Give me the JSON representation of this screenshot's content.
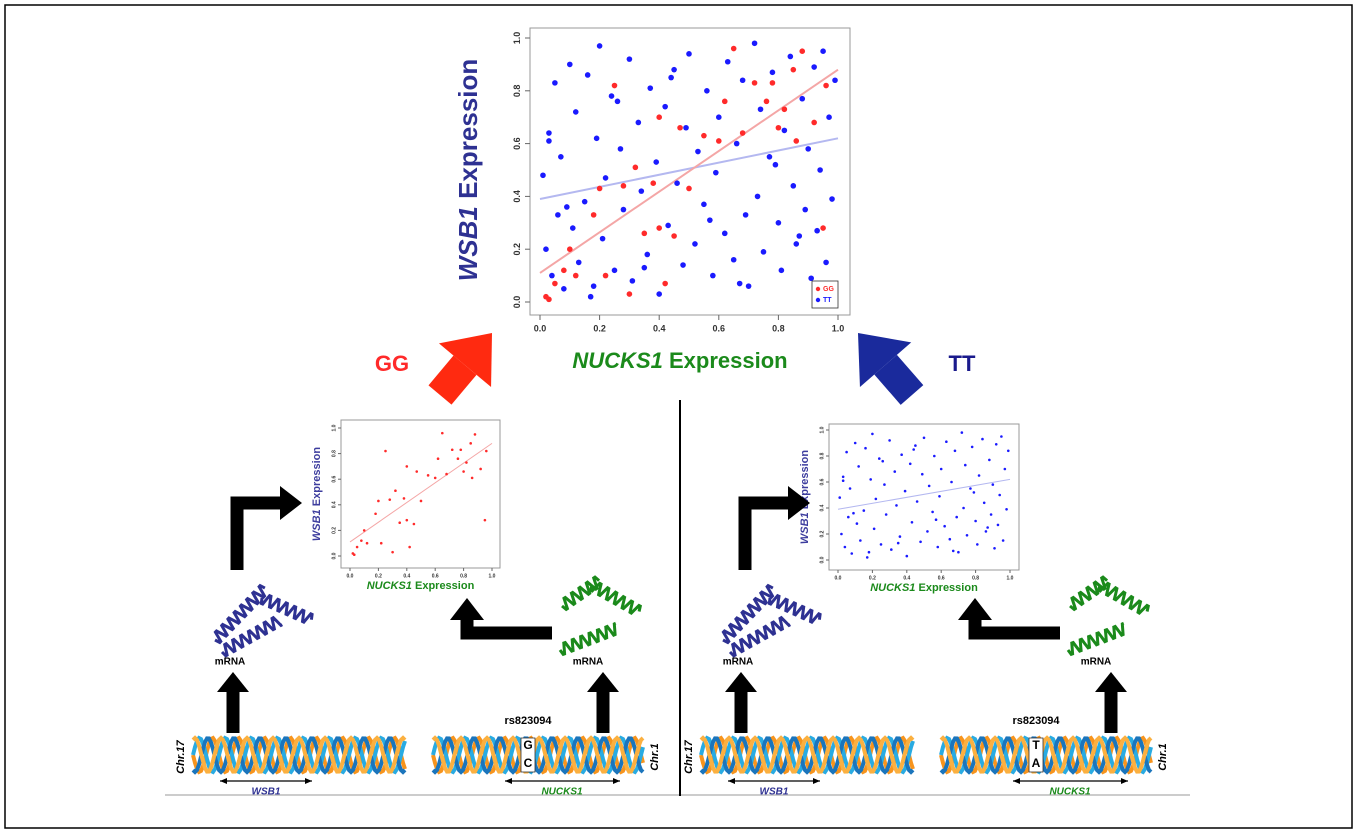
{
  "chart_data": {
    "type": "scatter",
    "x_label": {
      "gene": "NUCKS1",
      "rest": "Expression"
    },
    "y_label": {
      "gene": "WSB1",
      "rest": "Expression"
    },
    "xlim": [
      0,
      1
    ],
    "ylim": [
      0,
      1
    ],
    "xticks": [
      {
        "value": 0,
        "label": "0.0"
      },
      0.2,
      0.4,
      0.6,
      0.8,
      {
        "value": 1,
        "label": "1.0"
      }
    ],
    "yticks": [
      {
        "value": 0,
        "label": "0.0"
      },
      0.2,
      0.4,
      0.6,
      0.8,
      {
        "value": 1,
        "label": "1.0"
      }
    ],
    "legend": "lower right",
    "series": [
      {
        "name": "GG",
        "color": "#ff2a2a",
        "trend_color": "#f4a6a6",
        "x": [
          0.02,
          0.03,
          0.05,
          0.08,
          0.1,
          0.12,
          0.18,
          0.2,
          0.22,
          0.25,
          0.28,
          0.3,
          0.32,
          0.35,
          0.38,
          0.4,
          0.4,
          0.42,
          0.45,
          0.47,
          0.5,
          0.55,
          0.6,
          0.62,
          0.65,
          0.68,
          0.72,
          0.76,
          0.78,
          0.8,
          0.82,
          0.85,
          0.86,
          0.88,
          0.92,
          0.95,
          0.96
        ],
        "y": [
          0.02,
          0.01,
          0.07,
          0.12,
          0.2,
          0.1,
          0.33,
          0.43,
          0.1,
          0.82,
          0.44,
          0.03,
          0.51,
          0.26,
          0.45,
          0.28,
          0.7,
          0.07,
          0.25,
          0.66,
          0.43,
          0.63,
          0.61,
          0.76,
          0.96,
          0.64,
          0.83,
          0.76,
          0.83,
          0.66,
          0.73,
          0.88,
          0.61,
          0.95,
          0.68,
          0.28,
          0.82
        ],
        "trend": [
          0.11,
          0.88
        ]
      },
      {
        "name": "TT",
        "color": "#1a1aff",
        "trend_color": "#b4b8f0",
        "x": [
          0.01,
          0.02,
          0.03,
          0.04,
          0.05,
          0.06,
          0.07,
          0.08,
          0.1,
          0.11,
          0.12,
          0.13,
          0.15,
          0.16,
          0.18,
          0.19,
          0.2,
          0.21,
          0.22,
          0.24,
          0.25,
          0.27,
          0.28,
          0.3,
          0.31,
          0.33,
          0.34,
          0.36,
          0.37,
          0.39,
          0.4,
          0.42,
          0.43,
          0.45,
          0.46,
          0.48,
          0.49,
          0.5,
          0.52,
          0.53,
          0.55,
          0.56,
          0.58,
          0.59,
          0.6,
          0.62,
          0.63,
          0.65,
          0.66,
          0.68,
          0.69,
          0.7,
          0.72,
          0.73,
          0.74,
          0.75,
          0.77,
          0.78,
          0.8,
          0.81,
          0.82,
          0.84,
          0.85,
          0.86,
          0.88,
          0.89,
          0.9,
          0.91,
          0.92,
          0.93,
          0.94,
          0.95,
          0.96,
          0.97,
          0.98,
          0.99,
          0.03,
          0.09,
          0.17,
          0.26,
          0.35,
          0.44,
          0.57,
          0.67,
          0.79,
          0.87
        ],
        "y": [
          0.48,
          0.2,
          0.64,
          0.1,
          0.83,
          0.33,
          0.55,
          0.05,
          0.9,
          0.28,
          0.72,
          0.15,
          0.38,
          0.86,
          0.06,
          0.62,
          0.97,
          0.24,
          0.47,
          0.78,
          0.12,
          0.58,
          0.35,
          0.92,
          0.08,
          0.68,
          0.42,
          0.18,
          0.81,
          0.53,
          0.03,
          0.74,
          0.29,
          0.88,
          0.45,
          0.14,
          0.66,
          0.94,
          0.22,
          0.57,
          0.37,
          0.8,
          0.1,
          0.49,
          0.7,
          0.26,
          0.91,
          0.16,
          0.6,
          0.84,
          0.33,
          0.06,
          0.98,
          0.4,
          0.73,
          0.19,
          0.55,
          0.87,
          0.3,
          0.12,
          0.65,
          0.93,
          0.44,
          0.22,
          0.77,
          0.35,
          0.58,
          0.09,
          0.89,
          0.27,
          0.5,
          0.95,
          0.15,
          0.7,
          0.39,
          0.84,
          0.61,
          0.36,
          0.02,
          0.76,
          0.13,
          0.85,
          0.31,
          0.07,
          0.52,
          0.25
        ],
        "trend": [
          0.39,
          0.62
        ]
      }
    ]
  },
  "groups": [
    {
      "label": "GG",
      "label_color": "#ff2a2a",
      "arrow_color": "#ff2a10",
      "small_plot": {
        "y_label": {
          "gene": "WSB1",
          "rest": "Expression"
        },
        "x_label": {
          "gene": "NUCKS1",
          "rest": "Expression"
        }
      },
      "mrna": [
        "mRNA",
        "mRNA"
      ],
      "snp": "rs823094",
      "alleles": [
        "G",
        "C"
      ],
      "chromosomes": [
        "Chr.17",
        "Chr.1"
      ],
      "genes": [
        "WSB1",
        "NUCKS1"
      ]
    },
    {
      "label": "TT",
      "label_color": "#1a1a8c",
      "arrow_color": "#1a2a9c",
      "small_plot": {
        "y_label": {
          "gene": "WSB1",
          "rest": "Expression"
        },
        "x_label": {
          "gene": "NUCKS1",
          "rest": "Expression"
        }
      },
      "mrna": [
        "mRNA",
        "mRNA"
      ],
      "snp": "rs823094",
      "alleles": [
        "T",
        "A"
      ],
      "chromosomes": [
        "Chr.17",
        "Chr.1"
      ],
      "genes": [
        "WSB1",
        "NUCKS1"
      ]
    }
  ]
}
